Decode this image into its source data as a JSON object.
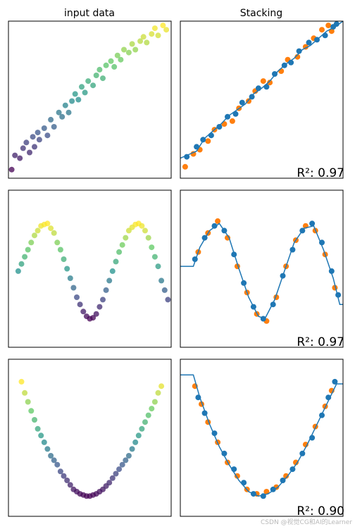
{
  "columns": [
    "input data",
    "Stacking"
  ],
  "watermark": "CSDN @视觉CG和AI的Learner",
  "colors": {
    "train_points": "#ff7f0e",
    "test_points": "#1f77b4",
    "prediction_line": "#1f77b4",
    "viridis": [
      "#440154",
      "#3b528b",
      "#21918c",
      "#5ec962",
      "#fde725"
    ]
  },
  "chart_data": [
    {
      "type": "scatter",
      "panel": "linear-input",
      "column": "input data",
      "xlim": [
        0,
        10
      ],
      "ylim": [
        -1,
        10
      ],
      "points": [
        [
          0.2,
          -0.4
        ],
        [
          0.4,
          0.6
        ],
        [
          0.7,
          0.4
        ],
        [
          0.9,
          1.1
        ],
        [
          1.1,
          1.5
        ],
        [
          1.3,
          0.8
        ],
        [
          1.5,
          1.9
        ],
        [
          1.6,
          1.2
        ],
        [
          1.8,
          2.2
        ],
        [
          1.9,
          1.7
        ],
        [
          2.2,
          2.5
        ],
        [
          2.4,
          2.0
        ],
        [
          2.6,
          3.1
        ],
        [
          2.8,
          2.6
        ],
        [
          3.1,
          3.6
        ],
        [
          3.3,
          3.3
        ],
        [
          3.5,
          4.1
        ],
        [
          3.7,
          3.6
        ],
        [
          3.9,
          4.4
        ],
        [
          4.1,
          4.9
        ],
        [
          4.3,
          4.5
        ],
        [
          4.5,
          5.4
        ],
        [
          4.7,
          5.0
        ],
        [
          4.9,
          5.8
        ],
        [
          5.2,
          5.5
        ],
        [
          5.4,
          6.2
        ],
        [
          5.6,
          6.6
        ],
        [
          5.8,
          6.0
        ],
        [
          6.0,
          6.9
        ],
        [
          6.3,
          7.2
        ],
        [
          6.5,
          6.8
        ],
        [
          6.7,
          7.6
        ],
        [
          6.9,
          7.3
        ],
        [
          7.1,
          8.0
        ],
        [
          7.4,
          7.8
        ],
        [
          7.6,
          8.4
        ],
        [
          7.8,
          8.0
        ],
        [
          8.1,
          8.6
        ],
        [
          8.3,
          8.9
        ],
        [
          8.5,
          8.5
        ],
        [
          8.8,
          9.1
        ],
        [
          9.0,
          9.5
        ],
        [
          9.2,
          9.0
        ],
        [
          9.5,
          9.7
        ],
        [
          9.7,
          9.4
        ]
      ]
    },
    {
      "type": "scatter",
      "panel": "linear-stacking",
      "column": "Stacking",
      "xlim": [
        0,
        10
      ],
      "ylim": [
        -1,
        10
      ],
      "r2": "R²: 0.97",
      "train_points": [
        [
          0.3,
          -0.2
        ],
        [
          0.8,
          0.7
        ],
        [
          1.2,
          1.0
        ],
        [
          1.7,
          1.6
        ],
        [
          2.1,
          2.4
        ],
        [
          2.7,
          2.8
        ],
        [
          3.2,
          3.0
        ],
        [
          3.6,
          3.9
        ],
        [
          4.2,
          4.4
        ],
        [
          4.6,
          5.1
        ],
        [
          5.1,
          5.8
        ],
        [
          5.5,
          5.7
        ],
        [
          6.2,
          6.5
        ],
        [
          6.6,
          7.3
        ],
        [
          7.2,
          7.5
        ],
        [
          7.7,
          8.2
        ],
        [
          8.2,
          8.8
        ],
        [
          8.7,
          9.4
        ],
        [
          9.1,
          9.7
        ],
        [
          9.3,
          9.3
        ]
      ],
      "test_points": [
        [
          0.4,
          0.5
        ],
        [
          1.0,
          1.2
        ],
        [
          1.4,
          1.7
        ],
        [
          1.9,
          2.0
        ],
        [
          2.4,
          2.6
        ],
        [
          2.9,
          3.3
        ],
        [
          3.4,
          3.5
        ],
        [
          3.8,
          4.3
        ],
        [
          4.4,
          4.7
        ],
        [
          4.8,
          5.3
        ],
        [
          5.3,
          5.4
        ],
        [
          5.8,
          6.3
        ],
        [
          6.4,
          6.9
        ],
        [
          6.8,
          7.1
        ],
        [
          7.3,
          7.9
        ],
        [
          7.9,
          8.5
        ],
        [
          8.4,
          8.7
        ],
        [
          8.9,
          9.0
        ],
        [
          9.4,
          9.6
        ],
        [
          9.6,
          9.8
        ]
      ],
      "line": [
        [
          0,
          0.4
        ],
        [
          0.6,
          0.7
        ],
        [
          1.0,
          0.9
        ],
        [
          1.5,
          1.8
        ],
        [
          2.0,
          2.3
        ],
        [
          2.5,
          2.8
        ],
        [
          3.0,
          3.4
        ],
        [
          3.5,
          3.8
        ],
        [
          4.0,
          4.2
        ],
        [
          4.5,
          4.9
        ],
        [
          5.0,
          5.3
        ],
        [
          5.5,
          5.8
        ],
        [
          6.0,
          6.5
        ],
        [
          6.5,
          7.0
        ],
        [
          7.0,
          7.4
        ],
        [
          7.5,
          8.0
        ],
        [
          8.0,
          8.3
        ],
        [
          8.5,
          8.8
        ],
        [
          9.0,
          9.3
        ],
        [
          9.5,
          9.6
        ],
        [
          10,
          10.0
        ]
      ]
    },
    {
      "type": "scatter",
      "panel": "sine-input",
      "column": "input data",
      "xlim": [
        0,
        10
      ],
      "ylim": [
        -1.6,
        1.7
      ],
      "points": [
        [
          0.6,
          0.0
        ],
        [
          0.8,
          0.15
        ],
        [
          1.0,
          0.3
        ],
        [
          1.2,
          0.45
        ],
        [
          1.4,
          0.6
        ],
        [
          1.6,
          0.75
        ],
        [
          1.8,
          0.85
        ],
        [
          2.0,
          0.95
        ],
        [
          2.2,
          0.98
        ],
        [
          2.4,
          1.0
        ],
        [
          2.6,
          0.9
        ],
        [
          2.8,
          0.8
        ],
        [
          3.0,
          0.6
        ],
        [
          3.2,
          0.45
        ],
        [
          3.4,
          0.25
        ],
        [
          3.6,
          0.05
        ],
        [
          3.8,
          -0.15
        ],
        [
          4.0,
          -0.35
        ],
        [
          4.2,
          -0.55
        ],
        [
          4.4,
          -0.7
        ],
        [
          4.6,
          -0.85
        ],
        [
          4.8,
          -0.95
        ],
        [
          5.0,
          -1.0
        ],
        [
          5.2,
          -0.98
        ],
        [
          5.4,
          -0.9
        ],
        [
          5.6,
          -0.75
        ],
        [
          5.8,
          -0.6
        ],
        [
          6.0,
          -0.4
        ],
        [
          6.2,
          -0.2
        ],
        [
          6.4,
          0.0
        ],
        [
          6.6,
          0.2
        ],
        [
          6.8,
          0.4
        ],
        [
          7.0,
          0.55
        ],
        [
          7.2,
          0.7
        ],
        [
          7.4,
          0.85
        ],
        [
          7.6,
          0.92
        ],
        [
          7.8,
          0.98
        ],
        [
          8.0,
          1.0
        ],
        [
          8.2,
          0.95
        ],
        [
          8.4,
          0.85
        ],
        [
          8.6,
          0.7
        ],
        [
          8.8,
          0.5
        ],
        [
          9.0,
          0.3
        ],
        [
          9.2,
          0.1
        ],
        [
          9.4,
          -0.2
        ],
        [
          9.6,
          -0.4
        ],
        [
          9.8,
          -0.6
        ]
      ]
    },
    {
      "type": "scatter",
      "panel": "sine-stacking",
      "column": "Stacking",
      "xlim": [
        0,
        10
      ],
      "ylim": [
        -1.6,
        1.7
      ],
      "r2": "R²: 0.97",
      "train_points": [
        [
          1.1,
          0.4
        ],
        [
          1.7,
          0.8
        ],
        [
          2.3,
          1.05
        ],
        [
          2.9,
          0.7
        ],
        [
          3.5,
          0.1
        ],
        [
          4.1,
          -0.45
        ],
        [
          4.7,
          -0.9
        ],
        [
          5.3,
          -1.05
        ],
        [
          5.9,
          -0.55
        ],
        [
          6.5,
          0.1
        ],
        [
          7.1,
          0.65
        ],
        [
          7.7,
          0.95
        ],
        [
          8.3,
          0.85
        ],
        [
          8.9,
          0.35
        ],
        [
          9.5,
          -0.35
        ]
      ],
      "test_points": [
        [
          0.9,
          0.25
        ],
        [
          1.5,
          0.7
        ],
        [
          2.1,
          0.95
        ],
        [
          2.7,
          0.85
        ],
        [
          3.3,
          0.35
        ],
        [
          3.9,
          -0.25
        ],
        [
          4.5,
          -0.75
        ],
        [
          5.1,
          -1.0
        ],
        [
          5.7,
          -0.7
        ],
        [
          6.3,
          -0.1
        ],
        [
          6.9,
          0.45
        ],
        [
          7.5,
          0.85
        ],
        [
          8.1,
          1.0
        ],
        [
          8.7,
          0.6
        ],
        [
          9.3,
          0.0
        ],
        [
          9.7,
          -0.5
        ]
      ],
      "line": [
        [
          0,
          0.1
        ],
        [
          0.8,
          0.1
        ],
        [
          1.2,
          0.5
        ],
        [
          1.8,
          0.85
        ],
        [
          2.4,
          1.0
        ],
        [
          3.0,
          0.7
        ],
        [
          3.6,
          0.05
        ],
        [
          4.2,
          -0.55
        ],
        [
          4.8,
          -0.95
        ],
        [
          5.2,
          -1.0
        ],
        [
          5.8,
          -0.6
        ],
        [
          6.4,
          0.0
        ],
        [
          7.0,
          0.6
        ],
        [
          7.6,
          0.9
        ],
        [
          8.2,
          0.95
        ],
        [
          8.8,
          0.45
        ],
        [
          9.4,
          -0.15
        ],
        [
          9.8,
          -0.7
        ],
        [
          10,
          -0.7
        ]
      ]
    },
    {
      "type": "scatter",
      "panel": "parabola-input",
      "column": "input data",
      "xlim": [
        0,
        10
      ],
      "ylim": [
        -0.5,
        6.5
      ],
      "points": [
        [
          0.8,
          5.5
        ],
        [
          1.0,
          5.0
        ],
        [
          1.2,
          4.6
        ],
        [
          1.4,
          4.2
        ],
        [
          1.6,
          3.8
        ],
        [
          1.8,
          3.4
        ],
        [
          2.0,
          3.1
        ],
        [
          2.2,
          2.8
        ],
        [
          2.4,
          2.5
        ],
        [
          2.6,
          2.2
        ],
        [
          2.8,
          2.0
        ],
        [
          3.0,
          1.8
        ],
        [
          3.2,
          1.5
        ],
        [
          3.4,
          1.3
        ],
        [
          3.6,
          1.1
        ],
        [
          3.8,
          0.9
        ],
        [
          4.0,
          0.7
        ],
        [
          4.2,
          0.6
        ],
        [
          4.4,
          0.5
        ],
        [
          4.6,
          0.45
        ],
        [
          4.8,
          0.4
        ],
        [
          5.0,
          0.4
        ],
        [
          5.2,
          0.45
        ],
        [
          5.4,
          0.5
        ],
        [
          5.6,
          0.6
        ],
        [
          5.8,
          0.7
        ],
        [
          6.0,
          0.85
        ],
        [
          6.2,
          1.0
        ],
        [
          6.4,
          1.2
        ],
        [
          6.6,
          1.4
        ],
        [
          6.8,
          1.6
        ],
        [
          7.0,
          1.8
        ],
        [
          7.2,
          2.0
        ],
        [
          7.4,
          2.2
        ],
        [
          7.6,
          2.5
        ],
        [
          7.8,
          2.8
        ],
        [
          8.0,
          3.1
        ],
        [
          8.2,
          3.4
        ],
        [
          8.4,
          3.7
        ],
        [
          8.6,
          4.0
        ],
        [
          8.8,
          4.3
        ],
        [
          9.0,
          4.6
        ],
        [
          9.2,
          5.0
        ],
        [
          9.4,
          5.3
        ]
      ]
    },
    {
      "type": "scatter",
      "panel": "parabola-stacking",
      "column": "Stacking",
      "xlim": [
        0,
        10
      ],
      "ylim": [
        -0.5,
        6.5
      ],
      "r2": "R²: 0.90",
      "train_points": [
        [
          0.9,
          5.3
        ],
        [
          1.3,
          4.5
        ],
        [
          1.7,
          3.7
        ],
        [
          2.3,
          2.8
        ],
        [
          2.9,
          1.9
        ],
        [
          3.5,
          1.3
        ],
        [
          4.1,
          0.7
        ],
        [
          4.7,
          0.5
        ],
        [
          5.3,
          0.6
        ],
        [
          5.9,
          0.8
        ],
        [
          6.5,
          1.3
        ],
        [
          7.1,
          1.9
        ],
        [
          7.7,
          2.7
        ],
        [
          8.3,
          3.5
        ],
        [
          8.9,
          4.4
        ],
        [
          9.3,
          5.1
        ]
      ],
      "test_points": [
        [
          1.1,
          4.8
        ],
        [
          1.5,
          4.1
        ],
        [
          2.1,
          3.2
        ],
        [
          2.7,
          2.3
        ],
        [
          3.3,
          1.6
        ],
        [
          3.9,
          1.0
        ],
        [
          4.5,
          0.5
        ],
        [
          5.1,
          0.4
        ],
        [
          5.7,
          0.7
        ],
        [
          6.3,
          1.1
        ],
        [
          6.9,
          1.6
        ],
        [
          7.5,
          2.3
        ],
        [
          8.1,
          3.0
        ],
        [
          8.7,
          4.0
        ],
        [
          9.1,
          4.8
        ],
        [
          9.5,
          5.5
        ]
      ],
      "line": [
        [
          0,
          5.8
        ],
        [
          0.8,
          5.8
        ],
        [
          1.2,
          4.8
        ],
        [
          1.8,
          3.6
        ],
        [
          2.4,
          2.6
        ],
        [
          3.0,
          1.8
        ],
        [
          3.6,
          1.1
        ],
        [
          4.2,
          0.6
        ],
        [
          4.8,
          0.4
        ],
        [
          5.4,
          0.5
        ],
        [
          6.0,
          0.8
        ],
        [
          6.6,
          1.3
        ],
        [
          7.2,
          1.9
        ],
        [
          7.8,
          2.7
        ],
        [
          8.4,
          3.6
        ],
        [
          9.0,
          4.5
        ],
        [
          9.6,
          5.4
        ],
        [
          10,
          5.4
        ]
      ]
    }
  ]
}
